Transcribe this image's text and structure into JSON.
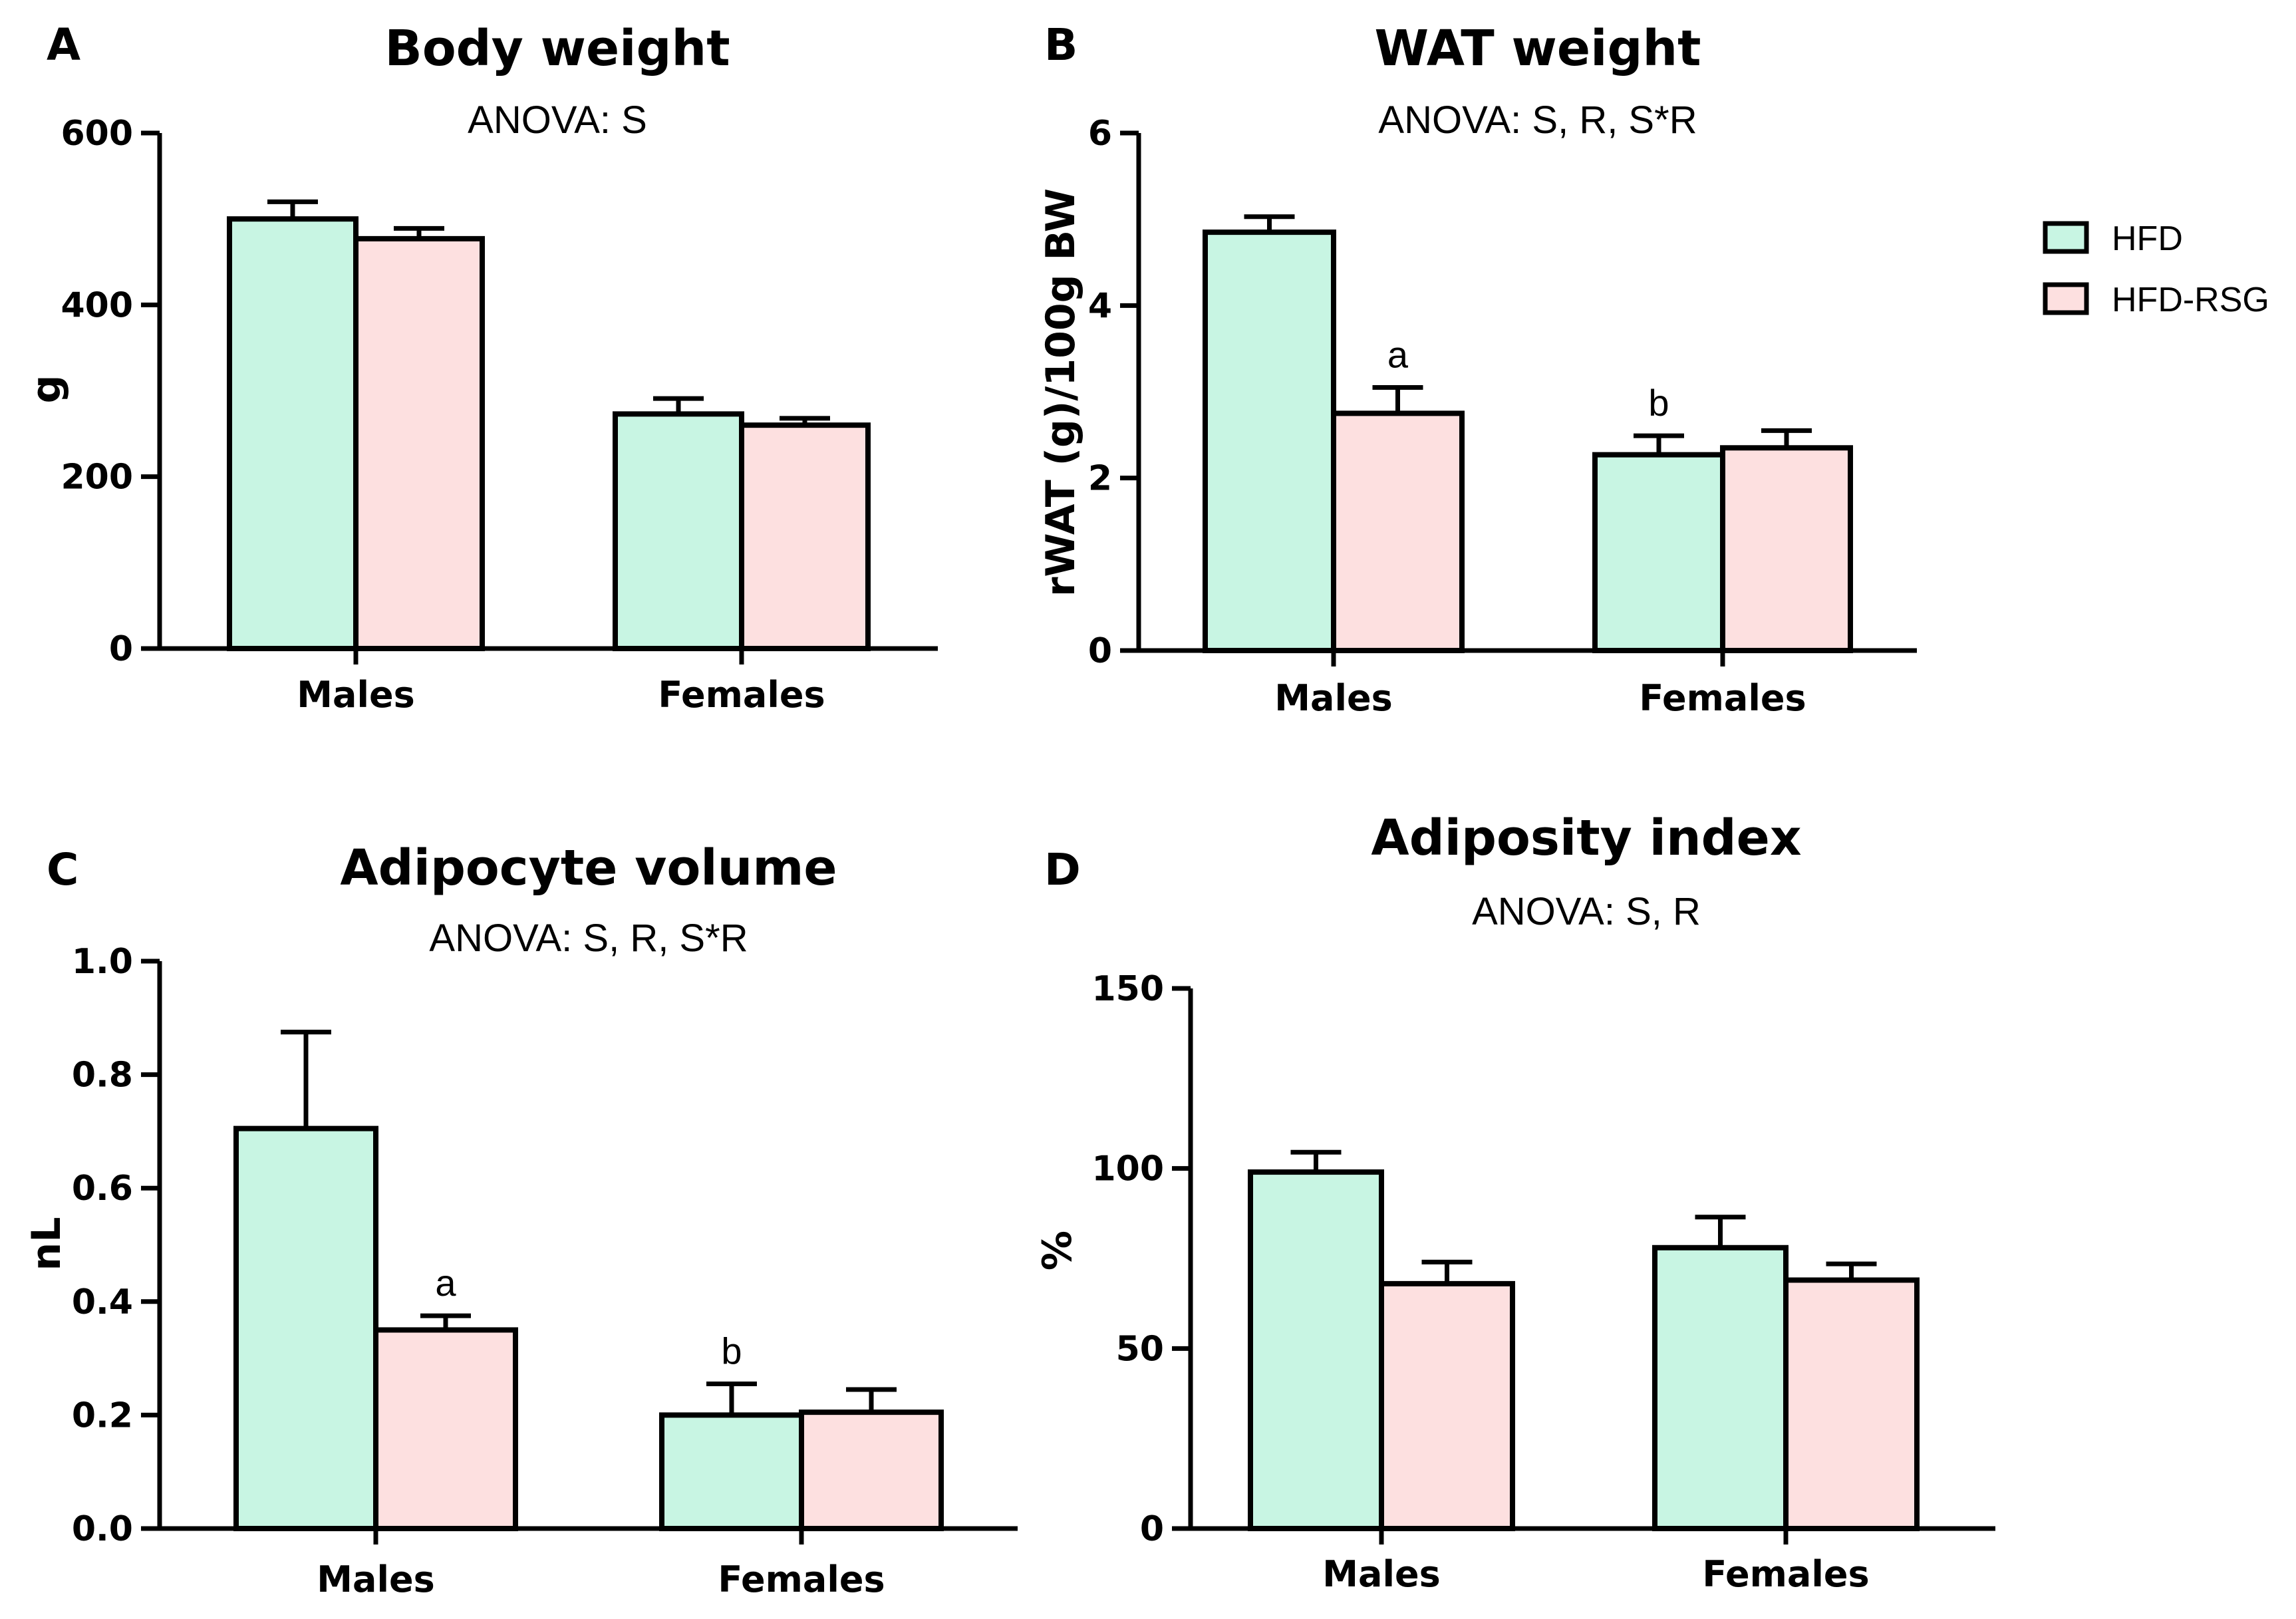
{
  "colors": {
    "HFD": "#c8f5e3",
    "HFD-RSG": "#fde0e0",
    "stroke": "#000000"
  },
  "legend": {
    "items": [
      "HFD",
      "HFD-RSG"
    ]
  },
  "chart_data": [
    {
      "panel": "A",
      "type": "bar",
      "title": "Body weight",
      "subtitle": "ANOVA: S",
      "ylabel": "g",
      "xlabel": "",
      "ylim": [
        0,
        600
      ],
      "yticks": [
        0,
        200,
        400,
        600
      ],
      "categories": [
        "Males",
        "Females"
      ],
      "series": [
        {
          "name": "HFD",
          "values": [
            500,
            273
          ],
          "errors": [
            20,
            18
          ]
        },
        {
          "name": "HFD-RSG",
          "values": [
            477,
            260
          ],
          "errors": [
            12,
            8
          ]
        }
      ],
      "annotations": []
    },
    {
      "panel": "B",
      "type": "bar",
      "title": "WAT weight",
      "subtitle": "ANOVA: S, R, S*R",
      "ylabel": "rWAT (g)/100g BW",
      "xlabel": "",
      "ylim": [
        0,
        6
      ],
      "yticks": [
        0,
        2,
        4,
        6
      ],
      "categories": [
        "Males",
        "Females"
      ],
      "series": [
        {
          "name": "HFD",
          "values": [
            4.85,
            2.27
          ],
          "errors": [
            0.18,
            0.22
          ]
        },
        {
          "name": "HFD-RSG",
          "values": [
            2.75,
            2.35
          ],
          "errors": [
            0.3,
            0.2
          ]
        }
      ],
      "annotations": [
        {
          "text": "a",
          "category": "Males",
          "series": "HFD-RSG"
        },
        {
          "text": "b",
          "category": "Females",
          "series": "HFD"
        }
      ]
    },
    {
      "panel": "C",
      "type": "bar",
      "title": "Adipocyte volume",
      "subtitle": "ANOVA: S, R, S*R",
      "ylabel": "nL",
      "xlabel": "",
      "ylim": [
        0,
        1.0
      ],
      "yticks": [
        0.0,
        0.2,
        0.4,
        0.6,
        0.8,
        1.0
      ],
      "ytick_labels": [
        "0.0",
        "0.2",
        "0.4",
        "0.6",
        "0.8",
        "1.0"
      ],
      "categories": [
        "Males",
        "Females"
      ],
      "series": [
        {
          "name": "HFD",
          "values": [
            0.705,
            0.2
          ],
          "errors": [
            0.17,
            0.055
          ]
        },
        {
          "name": "HFD-RSG",
          "values": [
            0.35,
            0.205
          ],
          "errors": [
            0.025,
            0.04
          ]
        }
      ],
      "annotations": [
        {
          "text": "a",
          "category": "Males",
          "series": "HFD-RSG"
        },
        {
          "text": "b",
          "category": "Females",
          "series": "HFD"
        }
      ]
    },
    {
      "panel": "D",
      "type": "bar",
      "title": "Adiposity index",
      "subtitle": "ANOVA: S, R",
      "ylabel": "%",
      "xlabel": "",
      "ylim": [
        0,
        150
      ],
      "yticks": [
        0,
        50,
        100,
        150
      ],
      "categories": [
        "Males",
        "Females"
      ],
      "series": [
        {
          "name": "HFD",
          "values": [
            99,
            78
          ],
          "errors": [
            5.5,
            8.5
          ]
        },
        {
          "name": "HFD-RSG",
          "values": [
            68,
            69
          ],
          "errors": [
            6,
            4.5
          ]
        }
      ],
      "annotations": []
    }
  ]
}
